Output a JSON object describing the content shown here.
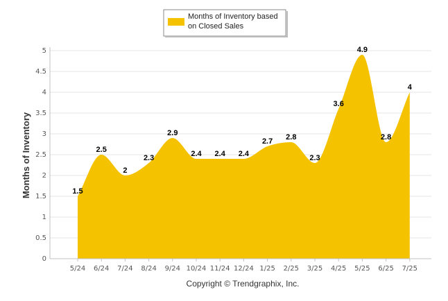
{
  "chart_data": {
    "type": "area",
    "categories": [
      "5/24",
      "6/24",
      "7/24",
      "8/24",
      "9/24",
      "10/24",
      "11/24",
      "12/24",
      "1/25",
      "2/25",
      "3/25",
      "4/25",
      "5/25",
      "6/25",
      "7/25"
    ],
    "series": [
      {
        "name": "Months of Inventory based on Closed Sales",
        "values": [
          1.5,
          2.5,
          2,
          2.3,
          2.9,
          2.4,
          2.4,
          2.4,
          2.7,
          2.8,
          2.3,
          3.6,
          4.9,
          2.8,
          4
        ]
      }
    ],
    "ylabel": "Months of Inventory",
    "ylim": [
      0,
      5
    ],
    "yticks": [
      "0",
      "0.5",
      "1",
      "1.5",
      "2",
      "2.5",
      "3",
      "3.5",
      "4",
      "4.5",
      "5"
    ],
    "grid": true,
    "legend_position": "top-center",
    "footer": "Copyright © Trendgraphix, Inc.",
    "colors": {
      "area": "#F5C200",
      "grid": "#e6e6e6",
      "axis": "#c0c0c0"
    }
  }
}
